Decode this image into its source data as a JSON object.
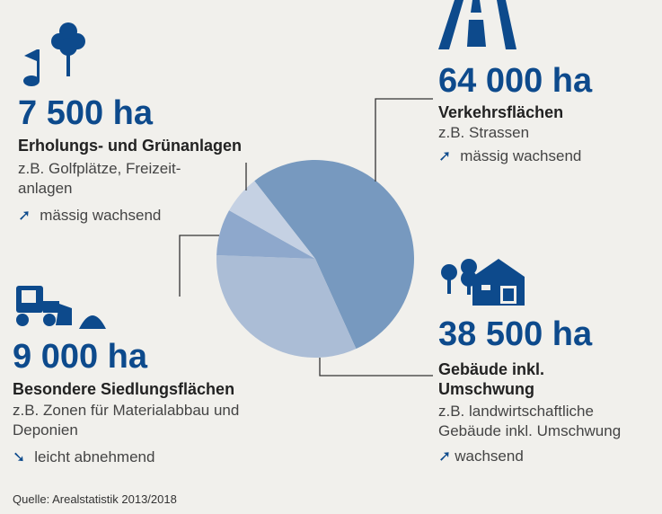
{
  "colors": {
    "accent": "#0d4a8c",
    "background": "#f1f0ec"
  },
  "chart_data": {
    "type": "pie",
    "unit": "ha",
    "categories": [
      "Verkehrsflächen",
      "Gebäude inkl. Umschwung",
      "Besondere Siedlungsflächen",
      "Erholungs- und Grünanlagen"
    ],
    "values": [
      64000,
      38500,
      9000,
      7500
    ],
    "slice_colors": [
      "#7799bf",
      "#abbdd6",
      "#8ea8cc",
      "#c5d1e3"
    ]
  },
  "blocks": {
    "erholung": {
      "icon": "golf-flag-and-tree-icon",
      "value": "7 500 ha",
      "title": "Erholungs- und Grünanlagen",
      "desc": "z.B. Golfplätze, Freizeit-anlagen",
      "trend_icon": "arrow-up-right-icon",
      "trend": "mässig wachsend"
    },
    "besondere": {
      "icon": "loader-and-gravel-pile-icon",
      "value": "9 000 ha",
      "title": "Besondere Siedlungsflächen",
      "desc": "z.B. Zonen für Materialabbau und Deponien",
      "trend_icon": "arrow-right-down-icon",
      "trend": "leicht abnehmend"
    },
    "verkehr": {
      "icon": "road-icon",
      "value": "64 000 ha",
      "title": "Verkehrsflächen",
      "desc": "z.B. Strassen",
      "trend_icon": "arrow-up-right-icon",
      "trend": "mässig wachsend"
    },
    "gebaeude": {
      "icon": "trees-and-barn-icon",
      "value": "38 500 ha",
      "title": "Gebäude inkl. Umschwung",
      "desc": "z.B. landwirtschaftliche Gebäude inkl. Umschwung",
      "trend_icon": "arrow-up-right-icon",
      "trend": "wachsend"
    }
  },
  "source": "Quelle: Arealstatistik 2013/2018"
}
